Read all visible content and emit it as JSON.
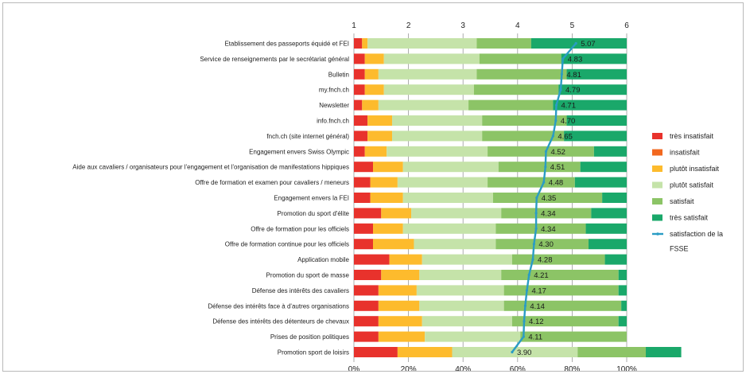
{
  "chart_data": {
    "type": "bar",
    "orientation": "horizontal",
    "stacked": true,
    "categories": [
      "Etablissement des passeports équidé et FEI",
      "Service de renseignements par le secrétariat général",
      "Bulletin",
      "my.fnch.ch",
      "Newsletter",
      "info.fnch.ch",
      "fnch.ch (site internet général)",
      "Engagement envers Swiss Olympic",
      "Aide aux cavaliers / organisateurs pour l'engagement et l'organisation de manifestations hippiques",
      "Offre de formation et examen pour cavaliers / meneurs",
      "Engagement envers la FEI",
      "Promotion du sport d'élite",
      "Offre de formation pour les officiels",
      "Offre de formation continue pour les officiels",
      "Application mobile",
      "Promotion du sport de masse",
      "Défense des intérêts des cavaliers",
      "Défense des intérêts face à d'autres organisations",
      "Défense des intérêts des détenteurs de chevaux",
      "Prises de position politiques",
      "Promotion sport de loisirs"
    ],
    "series": [
      {
        "name": "très insatisfait",
        "color": "#e8322c",
        "values": [
          3,
          4,
          4,
          4,
          3,
          5,
          5,
          4,
          7,
          6,
          6,
          10,
          7,
          7,
          13,
          10,
          9,
          9,
          9,
          9,
          16
        ]
      },
      {
        "name": "insatisfait",
        "color": "#f2681f",
        "values": [
          0,
          0,
          0,
          0,
          0,
          0,
          0,
          0,
          0,
          0,
          0,
          0,
          0,
          0,
          0,
          0,
          0,
          0,
          0,
          0,
          0
        ]
      },
      {
        "name": "plutôt insatisfait",
        "color": "#fdbb2d",
        "values": [
          2,
          7,
          5,
          7,
          6,
          9,
          9,
          8,
          11,
          10,
          12,
          11,
          11,
          15,
          12,
          14,
          14,
          15,
          16,
          17,
          20
        ]
      },
      {
        "name": "plutôt satisfait",
        "color": "#c5e3a9",
        "values": [
          40,
          35,
          36,
          33,
          33,
          33,
          33,
          37,
          35,
          33,
          33,
          33,
          34,
          30,
          33,
          30,
          32,
          31,
          33,
          35,
          46
        ]
      },
      {
        "name": "satisfait",
        "color": "#8cc466",
        "values": [
          20,
          30,
          33,
          31,
          31,
          31,
          30,
          39,
          30,
          32,
          40,
          33,
          33,
          34,
          34,
          43,
          42,
          43,
          39,
          39,
          25
        ]
      },
      {
        "name": "très satisfait",
        "color": "#1aa86a",
        "values": [
          35,
          24,
          22,
          25,
          27,
          22,
          23,
          12,
          17,
          19,
          9,
          13,
          15,
          14,
          8,
          3,
          3,
          2,
          3,
          0,
          13
        ]
      }
    ],
    "satisfaction": {
      "name": "satisfaction de la FSSE",
      "color": "#2a9cc4",
      "values": [
        5.07,
        4.83,
        4.81,
        4.79,
        4.71,
        4.7,
        4.65,
        4.52,
        4.51,
        4.48,
        4.35,
        4.34,
        4.34,
        4.3,
        4.28,
        4.21,
        4.17,
        4.14,
        4.12,
        4.11,
        3.9
      ]
    },
    "x_bottom": {
      "ticks": [
        "0%",
        "20%",
        "40%",
        "60%",
        "80%",
        "100%"
      ],
      "range": [
        0,
        100
      ]
    },
    "x_top": {
      "ticks": [
        "1",
        "2",
        "3",
        "4",
        "5",
        "6"
      ],
      "range": [
        1,
        6
      ]
    },
    "legend_position": "right",
    "grid": true
  },
  "legend": [
    {
      "label": "très insatisfait",
      "color": "#e8322c",
      "kind": "box"
    },
    {
      "label": "insatisfait",
      "color": "#f2681f",
      "kind": "box"
    },
    {
      "label": "plutôt insatisfait",
      "color": "#fdbb2d",
      "kind": "box"
    },
    {
      "label": "plutôt satisfait",
      "color": "#c5e3a9",
      "kind": "box"
    },
    {
      "label": "satisfait",
      "color": "#8cc466",
      "kind": "box"
    },
    {
      "label": "très satisfait",
      "color": "#1aa86a",
      "kind": "box"
    },
    {
      "label": "satisfaction de la",
      "color": "#2a9cc4",
      "kind": "line"
    },
    {
      "label": "FSSE",
      "color": "",
      "kind": "none"
    }
  ]
}
